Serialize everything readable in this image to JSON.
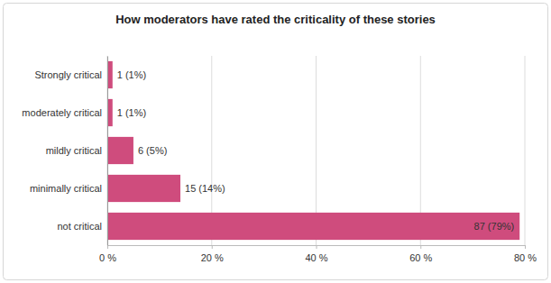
{
  "chart_data": {
    "type": "bar",
    "orientation": "horizontal",
    "title": "How moderators have rated the criticality of these stories",
    "categories": [
      "Strongly critical",
      "moderately critical",
      "mildly critical",
      "minimally critical",
      "not critical"
    ],
    "values": [
      1,
      1,
      5,
      14,
      79
    ],
    "value_labels": [
      "1 (1%)",
      "1 (1%)",
      "6 (5%)",
      "15 (14%)",
      "87 (79%)"
    ],
    "color": "#cf4c7d",
    "xlim": [
      0,
      80
    ],
    "xticks": [
      {
        "value": 0,
        "label": "0 %"
      },
      {
        "value": 20,
        "label": "20 %"
      },
      {
        "value": 40,
        "label": "40 %"
      },
      {
        "value": 60,
        "label": "60 %"
      },
      {
        "value": 80,
        "label": "80 %"
      }
    ],
    "grid": true,
    "data_labels": true
  }
}
